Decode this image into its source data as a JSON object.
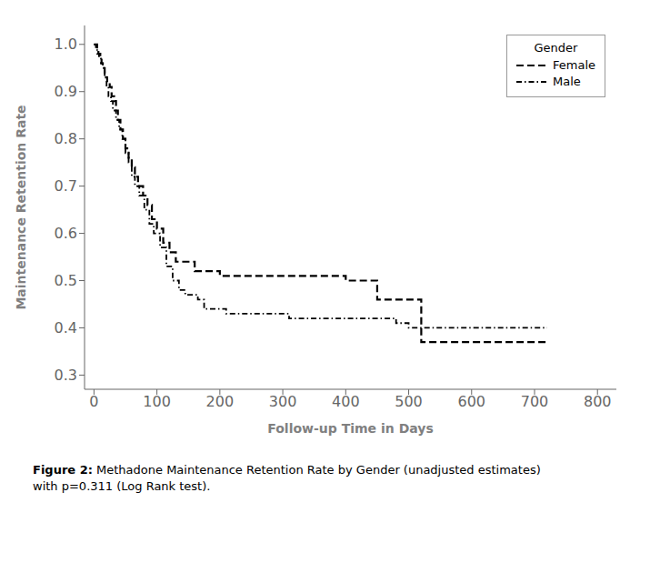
{
  "chart_data": {
    "type": "step",
    "xlabel": "Follow-up Time in Days",
    "ylabel": "Maintenance Retention Rate",
    "xlim": [
      -15,
      830
    ],
    "ylim": [
      0.27,
      1.04
    ],
    "xticks": [
      0,
      100,
      200,
      300,
      400,
      500,
      600,
      700,
      800
    ],
    "yticks": [
      0.3,
      0.4,
      0.5,
      0.6,
      0.7,
      0.8,
      0.9,
      {
        "value": 1.0,
        "label": "1.0"
      }
    ],
    "grid": false,
    "legend": "upper right",
    "legend_title": "Gender",
    "annotations": [
      {
        "text": "Figure 2:",
        "bold": true
      },
      {
        "text": " Methadone Maintenance Retention Rate by Gender (unadjusted estimates)\nwith p=0.311 (Log Rank test).",
        "bold": false
      }
    ],
    "series": [
      {
        "name": "Female",
        "color": "#000000",
        "line_style": "dashed",
        "x": [
          0,
          3,
          5,
          7,
          10,
          12,
          14,
          17,
          19,
          21,
          25,
          28,
          32,
          35,
          38,
          42,
          46,
          50,
          55,
          60,
          65,
          70,
          78,
          85,
          92,
          100,
          110,
          120,
          130,
          140,
          150,
          160,
          170,
          180,
          200,
          220,
          240,
          260,
          280,
          300,
          320,
          350,
          380,
          400,
          420,
          450,
          500,
          510,
          520,
          720
        ],
        "values": [
          1.0,
          1.0,
          0.99,
          0.98,
          0.97,
          0.96,
          0.95,
          0.94,
          0.93,
          0.92,
          0.91,
          0.89,
          0.88,
          0.86,
          0.84,
          0.82,
          0.8,
          0.78,
          0.76,
          0.74,
          0.72,
          0.7,
          0.68,
          0.66,
          0.63,
          0.61,
          0.58,
          0.56,
          0.54,
          0.54,
          0.54,
          0.52,
          0.52,
          0.52,
          0.51,
          0.51,
          0.51,
          0.51,
          0.51,
          0.51,
          0.51,
          0.51,
          0.51,
          0.5,
          0.5,
          0.46,
          0.46,
          0.46,
          0.37,
          0.37
        ]
      },
      {
        "name": "Male",
        "color": "#000000",
        "line_style": "dashdot",
        "x": [
          0,
          3,
          5,
          8,
          11,
          14,
          17,
          20,
          23,
          27,
          30,
          35,
          40,
          45,
          50,
          55,
          60,
          65,
          72,
          80,
          88,
          95,
          105,
          115,
          125,
          135,
          145,
          155,
          165,
          175,
          190,
          210,
          230,
          250,
          270,
          290,
          310,
          350,
          380,
          400,
          420,
          440,
          460,
          480,
          500,
          510,
          520,
          600,
          720
        ],
        "values": [
          1.0,
          0.99,
          0.98,
          0.97,
          0.96,
          0.95,
          0.93,
          0.91,
          0.89,
          0.88,
          0.86,
          0.84,
          0.82,
          0.8,
          0.77,
          0.75,
          0.72,
          0.7,
          0.68,
          0.65,
          0.62,
          0.6,
          0.57,
          0.53,
          0.5,
          0.48,
          0.47,
          0.47,
          0.46,
          0.44,
          0.44,
          0.43,
          0.43,
          0.43,
          0.43,
          0.43,
          0.42,
          0.42,
          0.42,
          0.42,
          0.42,
          0.42,
          0.42,
          0.41,
          0.4,
          0.4,
          0.4,
          0.4,
          0.4
        ]
      }
    ]
  }
}
